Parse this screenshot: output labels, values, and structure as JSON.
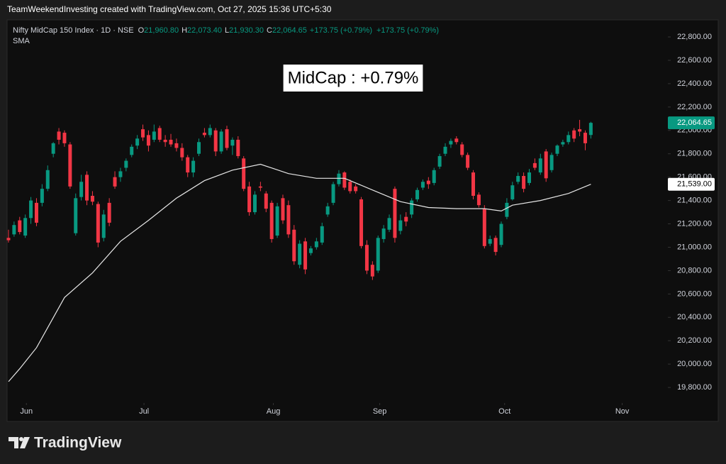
{
  "header": {
    "credit": "TeamWeekendInvesting created with TradingView.com, Oct 27, 2025 15:36 UTC+5:30"
  },
  "chart_data": {
    "type": "candlestick",
    "legend": {
      "symbol": "Nifty MidCap 150 Index · 1D · NSE",
      "ohlc": [
        {
          "key": "O",
          "value": "21,960.80"
        },
        {
          "key": "H",
          "value": "22,073.40"
        },
        {
          "key": "L",
          "value": "21,930.30"
        },
        {
          "key": "C",
          "value": "22,064.65"
        }
      ],
      "changes": [
        "+173.75 (+0.79%)",
        "+173.75 (+0.79%)"
      ]
    },
    "annotation": "MidCap : +0.79%",
    "up_color": "#089981",
    "down_color": "#f23645",
    "ohlc": [
      [
        21080,
        21150,
        21040,
        21060
      ],
      [
        21110,
        21220,
        21090,
        21190
      ],
      [
        21230,
        21260,
        21110,
        21130
      ],
      [
        21100,
        21280,
        21080,
        21250
      ],
      [
        21250,
        21430,
        21200,
        21400
      ],
      [
        21380,
        21420,
        21180,
        21210
      ],
      [
        21380,
        21540,
        21350,
        21500
      ],
      [
        21500,
        21700,
        21480,
        21660
      ],
      [
        21800,
        21900,
        21770,
        21890
      ],
      [
        21990,
        22020,
        21880,
        21920
      ],
      [
        21980,
        22000,
        21860,
        21890
      ],
      [
        21880,
        21900,
        21500,
        21520
      ],
      [
        21120,
        21460,
        21100,
        21420
      ],
      [
        21430,
        21620,
        21400,
        21560
      ],
      [
        21620,
        21650,
        21360,
        21400
      ],
      [
        21440,
        21480,
        21360,
        21390
      ],
      [
        21370,
        21390,
        21000,
        21040
      ],
      [
        21080,
        21320,
        21050,
        21280
      ],
      [
        21380,
        21420,
        21180,
        21210
      ],
      [
        21600,
        21650,
        21500,
        21520
      ],
      [
        21600,
        21680,
        21560,
        21650
      ],
      [
        21680,
        21760,
        21650,
        21740
      ],
      [
        21790,
        21880,
        21770,
        21860
      ],
      [
        21870,
        21960,
        21840,
        21930
      ],
      [
        22010,
        22050,
        21910,
        21940
      ],
      [
        21960,
        22000,
        21820,
        21870
      ],
      [
        21920,
        22050,
        21900,
        21990
      ],
      [
        22020,
        22040,
        21900,
        21920
      ],
      [
        21920,
        21960,
        21860,
        21900
      ],
      [
        21920,
        21970,
        21860,
        21880
      ],
      [
        21890,
        21930,
        21820,
        21850
      ],
      [
        21850,
        21890,
        21740,
        21770
      ],
      [
        21770,
        21790,
        21600,
        21640
      ],
      [
        21640,
        21770,
        21600,
        21740
      ],
      [
        21800,
        21930,
        21780,
        21900
      ],
      [
        21980,
        22020,
        21940,
        21960
      ],
      [
        21960,
        22050,
        21940,
        22020
      ],
      [
        22000,
        22020,
        21780,
        21820
      ],
      [
        21820,
        22010,
        21800,
        21990
      ],
      [
        22010,
        22040,
        21830,
        21850
      ],
      [
        21870,
        21940,
        21790,
        21920
      ],
      [
        21920,
        21950,
        21760,
        21780
      ],
      [
        21760,
        21780,
        21480,
        21500
      ],
      [
        21520,
        21560,
        21270,
        21300
      ],
      [
        21300,
        21480,
        21280,
        21450
      ],
      [
        21520,
        21560,
        21480,
        21510
      ],
      [
        21460,
        21480,
        21300,
        21330
      ],
      [
        21380,
        21400,
        21040,
        21070
      ],
      [
        21100,
        21380,
        21080,
        21350
      ],
      [
        21420,
        21450,
        21200,
        21230
      ],
      [
        21360,
        21400,
        21080,
        21110
      ],
      [
        21150,
        21190,
        20850,
        20880
      ],
      [
        20850,
        21060,
        20820,
        21030
      ],
      [
        21050,
        21080,
        20770,
        20810
      ],
      [
        20950,
        21010,
        20930,
        20990
      ],
      [
        21000,
        21080,
        20980,
        21050
      ],
      [
        21040,
        21210,
        21020,
        21180
      ],
      [
        21280,
        21380,
        21260,
        21350
      ],
      [
        21380,
        21560,
        21360,
        21540
      ],
      [
        21540,
        21660,
        21520,
        21630
      ],
      [
        21640,
        21650,
        21490,
        21510
      ],
      [
        21560,
        21580,
        21460,
        21480
      ],
      [
        21520,
        21540,
        21460,
        21480
      ],
      [
        21410,
        21430,
        20990,
        21010
      ],
      [
        21020,
        21060,
        20770,
        20800
      ],
      [
        20850,
        20880,
        20720,
        20750
      ],
      [
        20800,
        21100,
        20780,
        21080
      ],
      [
        21070,
        21190,
        21040,
        21160
      ],
      [
        21150,
        21280,
        21130,
        21250
      ],
      [
        21500,
        21520,
        21040,
        21080
      ],
      [
        21140,
        21280,
        21110,
        21230
      ],
      [
        21260,
        21300,
        21180,
        21220
      ],
      [
        21280,
        21420,
        21250,
        21400
      ],
      [
        21410,
        21510,
        21390,
        21490
      ],
      [
        21510,
        21580,
        21490,
        21560
      ],
      [
        21570,
        21600,
        21500,
        21540
      ],
      [
        21550,
        21680,
        21530,
        21660
      ],
      [
        21690,
        21800,
        21670,
        21780
      ],
      [
        21800,
        21890,
        21780,
        21860
      ],
      [
        21880,
        21930,
        21850,
        21910
      ],
      [
        21930,
        21950,
        21880,
        21900
      ],
      [
        21880,
        21900,
        21770,
        21790
      ],
      [
        21790,
        21810,
        21660,
        21680
      ],
      [
        21640,
        21660,
        21410,
        21440
      ],
      [
        21450,
        21470,
        21340,
        21360
      ],
      [
        21330,
        21360,
        20990,
        21010
      ],
      [
        21030,
        21100,
        21010,
        21070
      ],
      [
        21080,
        21100,
        20930,
        20960
      ],
      [
        21020,
        21220,
        21000,
        21200
      ],
      [
        21260,
        21420,
        21240,
        21380
      ],
      [
        21410,
        21560,
        21400,
        21530
      ],
      [
        21560,
        21640,
        21540,
        21610
      ],
      [
        21610,
        21640,
        21470,
        21500
      ],
      [
        21550,
        21670,
        21530,
        21640
      ],
      [
        21720,
        21760,
        21660,
        21680
      ],
      [
        21640,
        21800,
        21620,
        21760
      ],
      [
        21820,
        21840,
        21560,
        21590
      ],
      [
        21660,
        21810,
        21640,
        21790
      ],
      [
        21800,
        21880,
        21780,
        21870
      ],
      [
        21880,
        21920,
        21860,
        21900
      ],
      [
        21900,
        21990,
        21880,
        21960
      ],
      [
        22000,
        22020,
        21900,
        21930
      ],
      [
        22010,
        22090,
        21950,
        21990
      ],
      [
        21980,
        22000,
        21830,
        21890
      ],
      [
        21960.8,
        22073.4,
        21930.3,
        22064.65
      ]
    ],
    "series": [
      {
        "name": "SMA",
        "color": "#e6e6e6",
        "x": [
          0,
          2,
          5,
          10,
          15,
          20,
          25,
          30,
          35,
          40,
          45,
          50,
          55,
          60,
          65,
          70,
          75,
          80,
          85,
          88,
          90,
          95,
          100,
          104
        ],
        "values": [
          19850,
          19960,
          20140,
          20570,
          20780,
          21050,
          21230,
          21420,
          21570,
          21660,
          21710,
          21630,
          21590,
          21590,
          21490,
          21390,
          21340,
          21330,
          21330,
          21310,
          21360,
          21400,
          21460,
          21539
        ]
      }
    ],
    "last_price": {
      "value": 22064.65,
      "label": "22,064.65"
    },
    "sma_last": {
      "value": 21539,
      "label": "21,539.00"
    },
    "xlim": [
      -0.25,
      117.5
    ],
    "xticks": [
      {
        "value": 3.2,
        "label": "Jun"
      },
      {
        "value": 24.2,
        "label": "Jul"
      },
      {
        "value": 47.3,
        "label": "Aug"
      },
      {
        "value": 66.3,
        "label": "Sep"
      },
      {
        "value": 88.6,
        "label": "Oct"
      },
      {
        "value": 109.6,
        "label": "Nov"
      }
    ],
    "ylim": [
      19667,
      22946
    ],
    "yticks": [
      {
        "value": 19800,
        "label": "19,800.00"
      },
      {
        "value": 20000,
        "label": "20,000.00"
      },
      {
        "value": 20200,
        "label": "20,200.00"
      },
      {
        "value": 20400,
        "label": "20,400.00"
      },
      {
        "value": 20600,
        "label": "20,600.00"
      },
      {
        "value": 20800,
        "label": "20,800.00"
      },
      {
        "value": 21000,
        "label": "21,000.00"
      },
      {
        "value": 21200,
        "label": "21,200.00"
      },
      {
        "value": 21400,
        "label": "21,400.00"
      },
      {
        "value": 21600,
        "label": "21,600.00"
      },
      {
        "value": 21800,
        "label": "21,800.00"
      },
      {
        "value": 22000,
        "label": "22,000.00"
      },
      {
        "value": 22200,
        "label": "22,200.00"
      },
      {
        "value": 22400,
        "label": "22,400.00"
      },
      {
        "value": 22600,
        "label": "22,600.00"
      },
      {
        "value": 22800,
        "label": "22,800.00"
      }
    ]
  },
  "footer": {
    "brand": "TradingView"
  }
}
